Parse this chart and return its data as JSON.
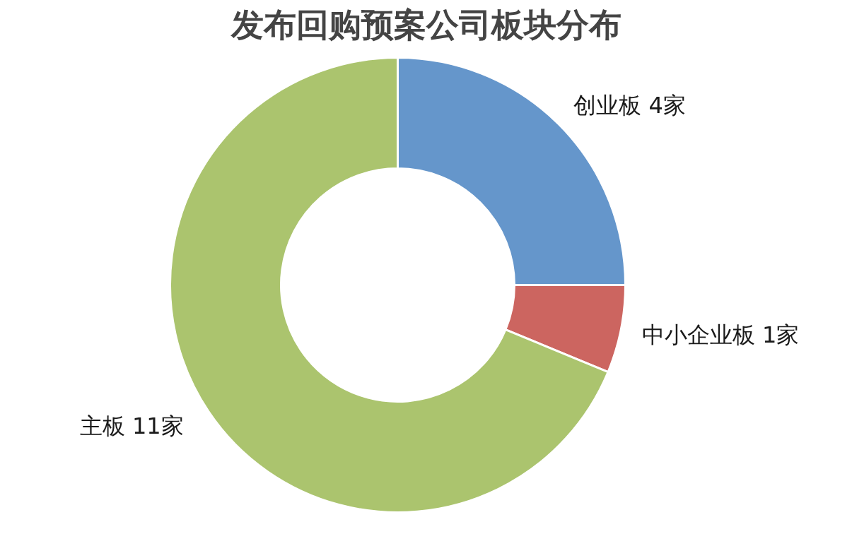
{
  "chart_data": {
    "type": "donut",
    "title": "发布回购预案公司板块分布",
    "categories": [
      "创业板",
      "中小企业板",
      "主板"
    ],
    "values": [
      4,
      1,
      11
    ],
    "colors": [
      "#6596cb",
      "#cc6560",
      "#abc46e"
    ],
    "value_labels": [
      "4家",
      "1家",
      "11家"
    ]
  }
}
